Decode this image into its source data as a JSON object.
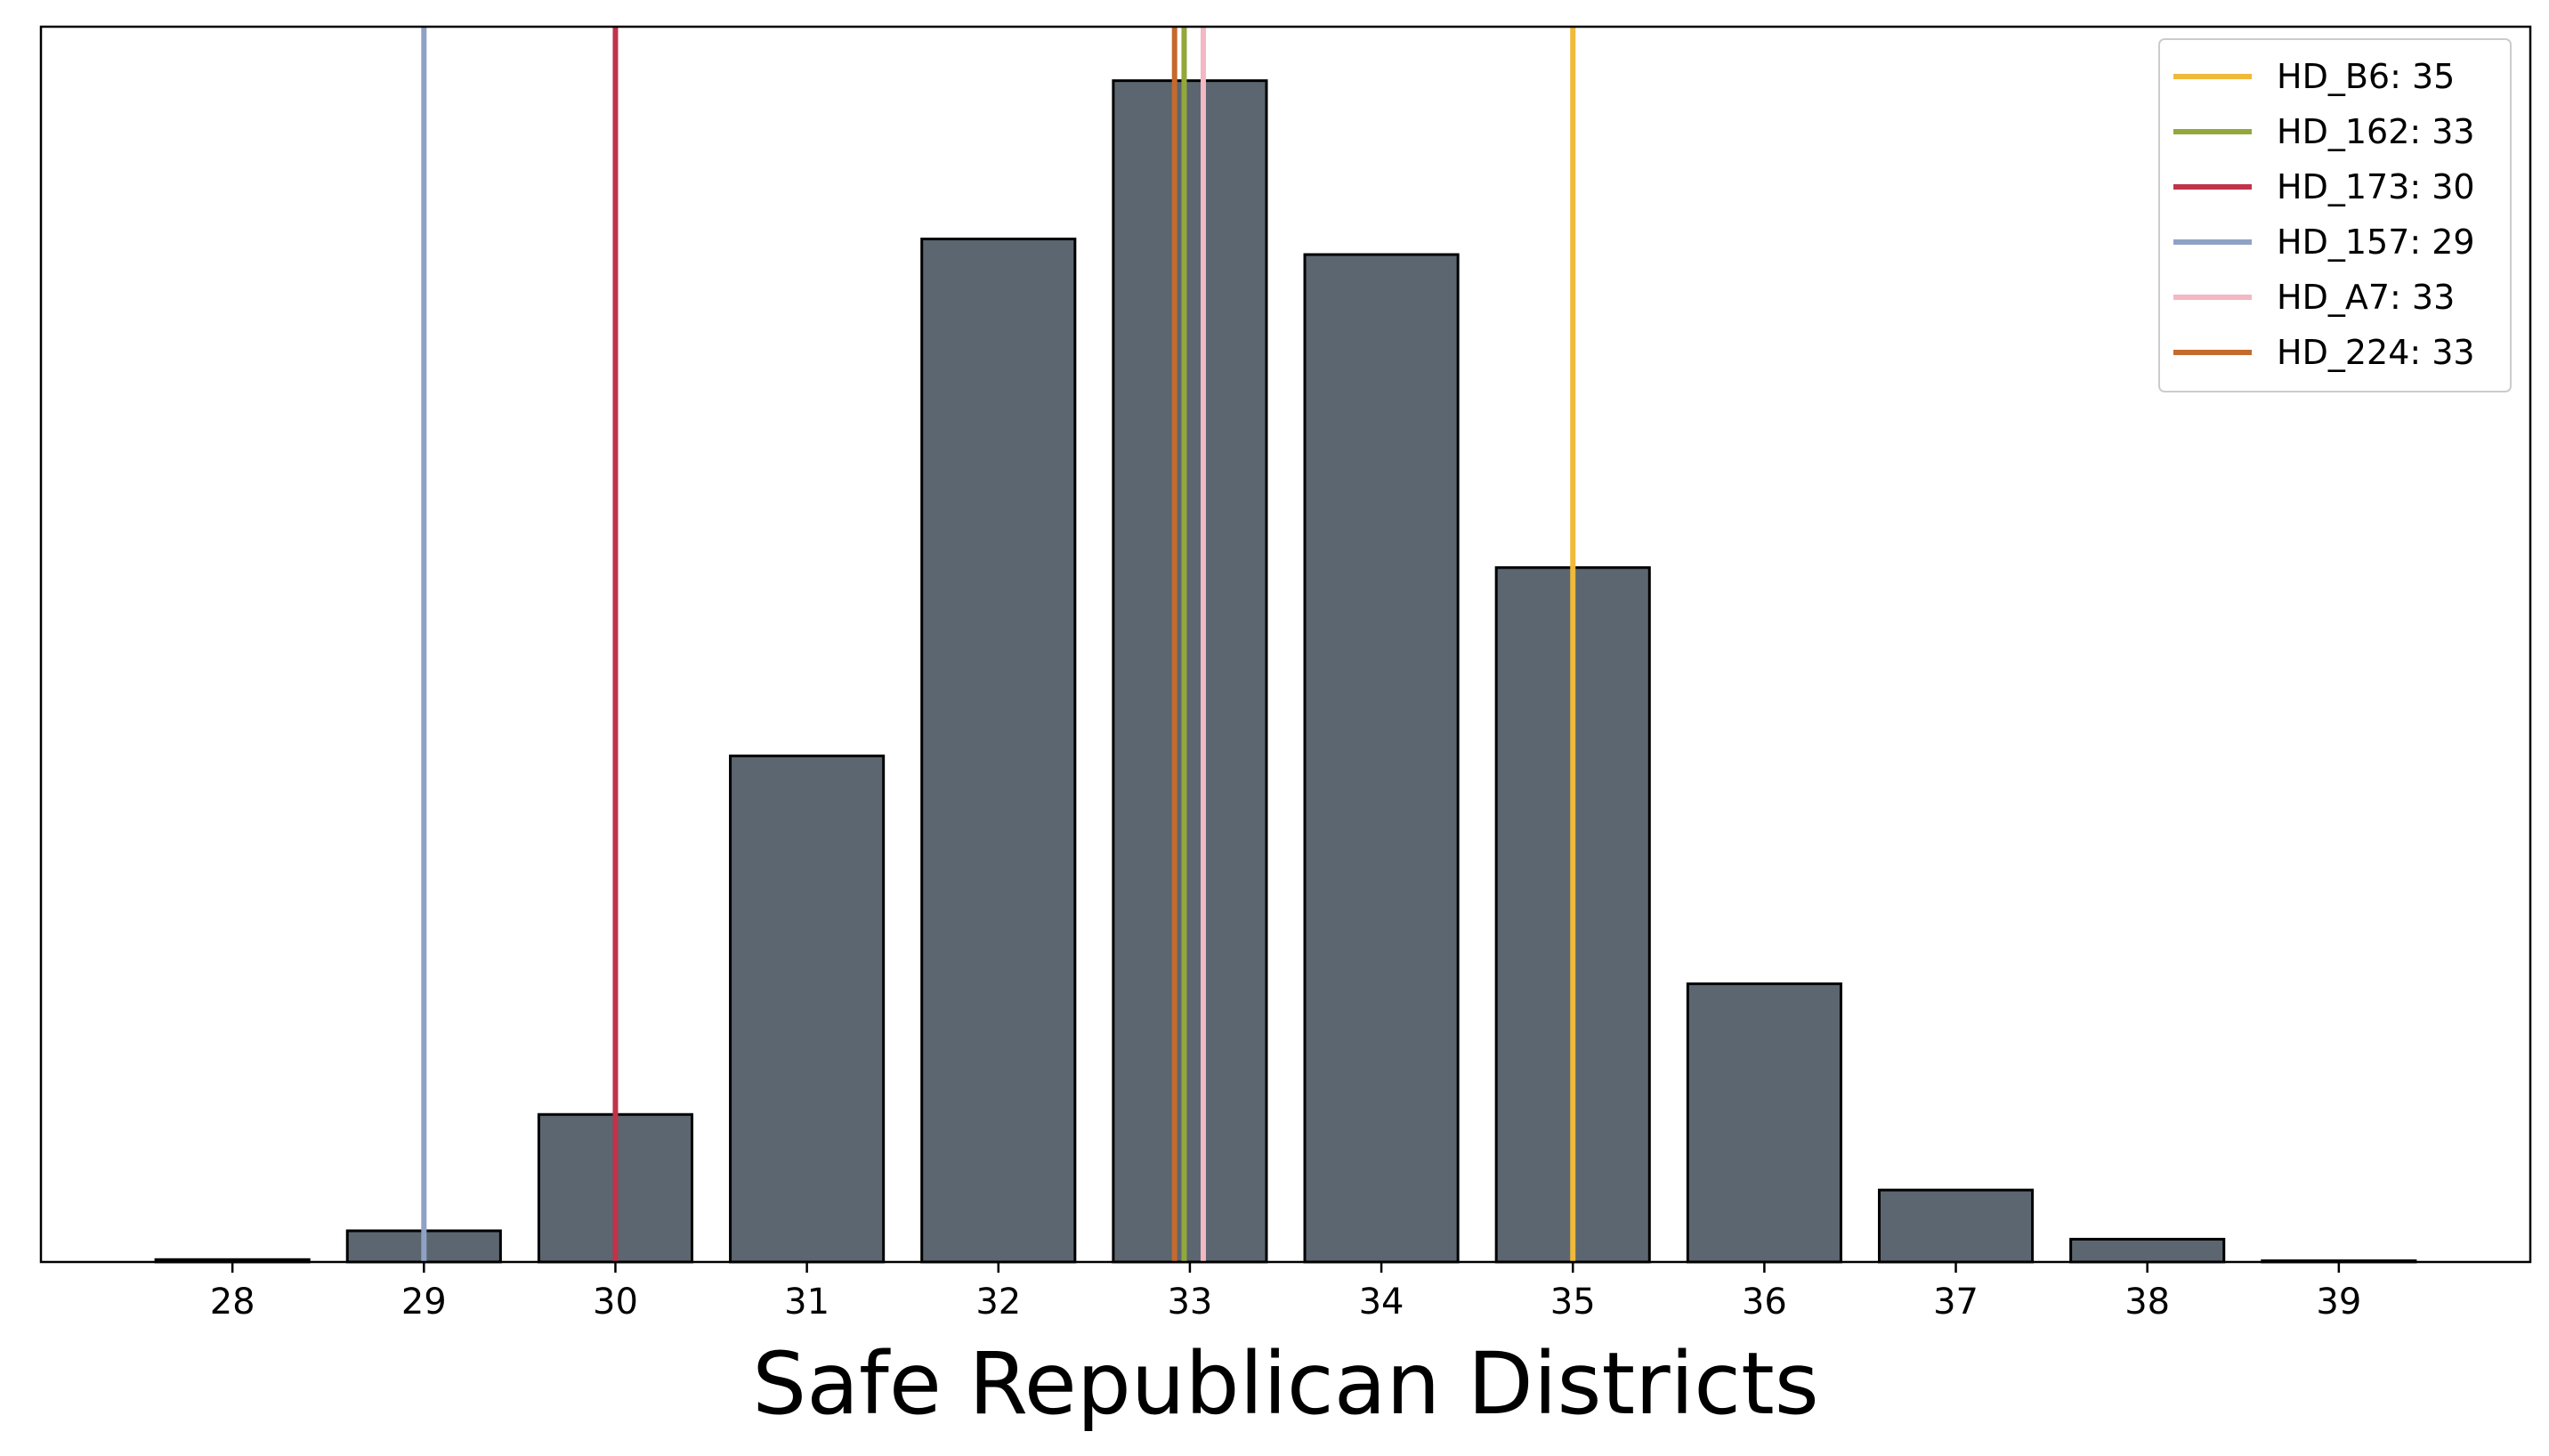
{
  "chart_data": {
    "type": "bar",
    "title": "",
    "xlabel": "Safe Republican Districts",
    "ylabel": "",
    "categories": [
      28,
      29,
      30,
      31,
      32,
      33,
      34,
      35,
      36,
      37,
      38,
      39
    ],
    "values": [
      0.2,
      2.6,
      12.3,
      42.2,
      85.3,
      98.5,
      84.0,
      57.9,
      23.2,
      6.0,
      1.9,
      0.1
    ],
    "xlim": [
      27.0,
      40.0
    ],
    "ylim": [
      0,
      103
    ],
    "grid": false,
    "bar_color": "#5b6670",
    "bar_edge_color": "#000000",
    "legend_position": "top-right",
    "reference_lines": [
      {
        "label": "HD_B6: 35",
        "x": 35,
        "color": "#f0b93a"
      },
      {
        "label": "HD_162: 33",
        "x": 32.97,
        "color": "#93a83a"
      },
      {
        "label": "HD_173: 30",
        "x": 30,
        "color": "#c0334a"
      },
      {
        "label": "HD_157: 29",
        "x": 29,
        "color": "#8fa2c6"
      },
      {
        "label": "HD_A7: 33",
        "x": 33.07,
        "color": "#f3b8c3"
      },
      {
        "label": "HD_224: 33",
        "x": 32.92,
        "color": "#c46a2e"
      }
    ]
  }
}
